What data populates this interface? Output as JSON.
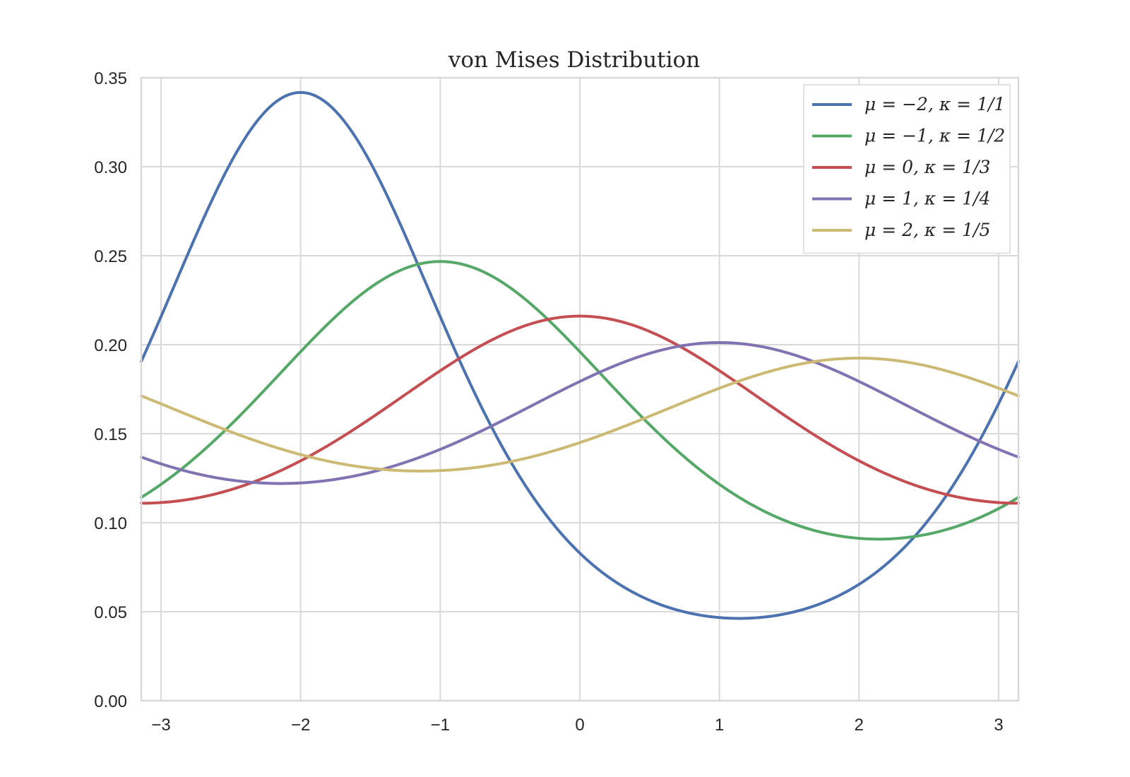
{
  "chart_data": {
    "type": "line",
    "title": "von Mises Distribution",
    "xlabel": "",
    "ylabel": "",
    "xlim": [
      -3.14159,
      3.14159
    ],
    "ylim": [
      0,
      0.35
    ],
    "grid": true,
    "legend_position": "top-right",
    "x_ticks": [
      {
        "value": -3,
        "label": "−3"
      },
      {
        "value": -2,
        "label": "−2"
      },
      {
        "value": -1,
        "label": "−1"
      },
      {
        "value": 0,
        "label": "0"
      },
      {
        "value": 1,
        "label": "1"
      },
      {
        "value": 2,
        "label": "2"
      },
      {
        "value": 3,
        "label": "3"
      }
    ],
    "y_ticks": [
      {
        "value": 0.0,
        "label": "0.00"
      },
      {
        "value": 0.05,
        "label": "0.05"
      },
      {
        "value": 0.1,
        "label": "0.10"
      },
      {
        "value": 0.15,
        "label": "0.15"
      },
      {
        "value": 0.2,
        "label": "0.20"
      },
      {
        "value": 0.25,
        "label": "0.25"
      },
      {
        "value": 0.3,
        "label": "0.30"
      },
      {
        "value": 0.35,
        "label": "0.35"
      }
    ],
    "series": [
      {
        "name": "μ = −2, κ = 1/1",
        "mu": -2,
        "kappa": 1.0,
        "color": "#4c72b0"
      },
      {
        "name": "μ = −1, κ = 1/2",
        "mu": -1,
        "kappa": 0.5,
        "color": "#55a868"
      },
      {
        "name": "μ = 0, κ = 1/3",
        "mu": 0,
        "kappa": 0.3333,
        "color": "#c44e52"
      },
      {
        "name": "μ = 1, κ = 1/4",
        "mu": 1,
        "kappa": 0.25,
        "color": "#8172b2"
      },
      {
        "name": "μ = 2, κ = 1/5",
        "mu": 2,
        "kappa": 0.2,
        "color": "#ccb974"
      }
    ]
  }
}
